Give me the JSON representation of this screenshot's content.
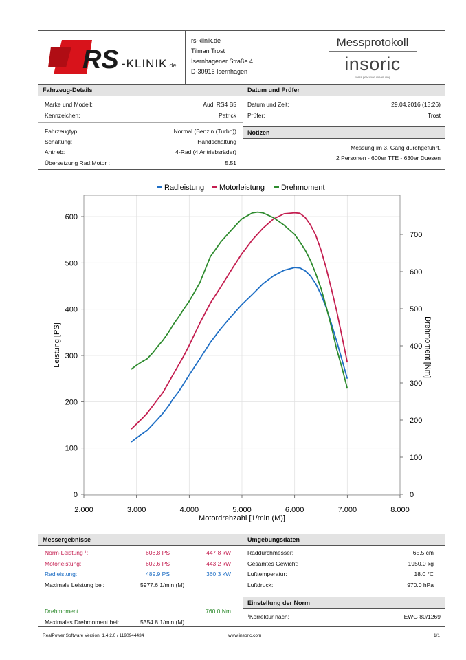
{
  "header": {
    "logo_rs": "RS",
    "logo_klinik": "-KLINIK",
    "logo_de": ".de",
    "address": [
      "rs-klinik.de",
      "Tilman Trost",
      "Isernhagener Straße 4",
      "D-30916 Isernhagen"
    ],
    "protocol_title": "Messprotokoll",
    "brand": "insoric",
    "brand_tagline": "swiss precision measuring"
  },
  "vehicle": {
    "title": "Fahrzeug-Details",
    "rows": [
      {
        "label": "Marke und Modell:",
        "value": "Audi RS4 B5"
      },
      {
        "label": "Kennzeichen:",
        "value": "Patrick"
      },
      {
        "label": "Fahrzeugtyp:",
        "value": "Normal (Benzin (Turbo))"
      },
      {
        "label": "Schaltung:",
        "value": "Handschaltung"
      },
      {
        "label": "Antrieb:",
        "value": "4-Rad (4 Antriebsräder)"
      },
      {
        "label": "Übersetzung Rad:Motor :",
        "value": "5.51"
      }
    ]
  },
  "date_tester": {
    "title": "Datum und Prüfer",
    "rows": [
      {
        "label": "Datum und Zeit:",
        "value": "29.04.2016 (13:26)"
      },
      {
        "label": "Prüfer:",
        "value": "Trost"
      }
    ]
  },
  "notes": {
    "title": "Notizen",
    "lines": [
      "Messung im 3. Gang durchgeführt.",
      "2 Personen - 600er TTE - 630er Duesen"
    ]
  },
  "chart_data": {
    "type": "line",
    "legend": [
      "Radleistung",
      "Motorleistung",
      "Drehmoment"
    ],
    "legend_position": "top-center",
    "xlabel": "Motordrehzahl [1/min (M)]",
    "ylabel": "Leistung [PS]",
    "y2label": "Drehmoment [Nm]",
    "xlim": [
      2000,
      8000
    ],
    "ylim": [
      0,
      650
    ],
    "y2lim": [
      0,
      790
    ],
    "xticks": [
      "2.000",
      "3.000",
      "4.000",
      "5.000",
      "6.000",
      "7.000",
      "8.000"
    ],
    "yticks": [
      "0",
      "100",
      "200",
      "300",
      "400",
      "500",
      "600"
    ],
    "y2ticks": [
      "0",
      "100",
      "200",
      "300",
      "400",
      "500",
      "600",
      "700"
    ],
    "grid": true,
    "series": [
      {
        "name": "Radleistung",
        "color": "#1f6fc5",
        "axis": "left",
        "x": [
          2900,
          3000,
          3100,
          3200,
          3300,
          3400,
          3500,
          3600,
          3700,
          3800,
          3900,
          4000,
          4200,
          4400,
          4600,
          4800,
          5000,
          5200,
          5400,
          5600,
          5800,
          6000,
          6100,
          6200,
          6300,
          6400,
          6500,
          6600,
          6700,
          6800,
          6900,
          7000
        ],
        "y": [
          113,
          122,
          130,
          138,
          150,
          162,
          175,
          190,
          207,
          222,
          240,
          258,
          293,
          328,
          358,
          385,
          410,
          432,
          455,
          472,
          484,
          490,
          489,
          483,
          472,
          455,
          432,
          403,
          368,
          330,
          290,
          250
        ]
      },
      {
        "name": "Motorleistung",
        "color": "#c41e50",
        "axis": "left",
        "x": [
          2900,
          3000,
          3100,
          3200,
          3300,
          3400,
          3500,
          3600,
          3700,
          3800,
          3900,
          4000,
          4200,
          4400,
          4600,
          4800,
          5000,
          5200,
          5400,
          5600,
          5800,
          6000,
          6100,
          6200,
          6300,
          6400,
          6500,
          6600,
          6700,
          6800,
          6900,
          7000
        ],
        "y": [
          141,
          152,
          163,
          175,
          190,
          205,
          220,
          240,
          260,
          280,
          300,
          322,
          370,
          413,
          448,
          485,
          520,
          550,
          575,
          595,
          606,
          608,
          607,
          598,
          582,
          560,
          528,
          488,
          443,
          395,
          340,
          285
        ]
      },
      {
        "name": "Drehmoment",
        "color": "#2e8b2e",
        "axis": "right",
        "x": [
          2900,
          3000,
          3100,
          3200,
          3300,
          3400,
          3500,
          3600,
          3700,
          3800,
          3900,
          4000,
          4200,
          4400,
          4600,
          4800,
          5000,
          5200,
          5300,
          5400,
          5600,
          5800,
          6000,
          6100,
          6200,
          6300,
          6400,
          6500,
          6600,
          6700,
          6800,
          6900,
          7000
        ],
        "y": [
          337,
          348,
          357,
          365,
          380,
          398,
          415,
          435,
          458,
          478,
          500,
          520,
          570,
          640,
          680,
          712,
          742,
          758,
          760,
          758,
          745,
          725,
          700,
          680,
          658,
          630,
          595,
          555,
          505,
          450,
          390,
          340,
          285
        ]
      }
    ]
  },
  "results": {
    "title": "Messergebnisse",
    "norm": {
      "label": "Norm-Leistung ¹:",
      "ps": "608.8 PS",
      "kw": "447.8 kW"
    },
    "motor": {
      "label": "Motorleistung:",
      "ps": "602.6 PS",
      "kw": "443.2 kW"
    },
    "wheel": {
      "label": "Radleistung:",
      "ps": "489.9 PS",
      "kw": "360.3 kW"
    },
    "max_power": {
      "label": "Maximale Leistung bei:",
      "value": "5977.6 1/min (M)"
    },
    "torque": {
      "label": "Drehmoment",
      "value": "760.0 Nm"
    },
    "max_torque": {
      "label": "Maximales Drehmoment bei:",
      "value": "5354.8 1/min (M)"
    }
  },
  "environment": {
    "title": "Umgebungsdaten",
    "rows": [
      {
        "label": "Raddurchmesser:",
        "value": "65.5 cm"
      },
      {
        "label": "Gesamtes Gewicht:",
        "value": "1950.0 kg"
      },
      {
        "label": "Lufttemperatur:",
        "value": "18.0 °C"
      },
      {
        "label": "Luftdruck:",
        "value": "970.0 hPa"
      }
    ]
  },
  "norm_setting": {
    "title": "Einstellung der Norm",
    "label": "¹Korrektur nach:",
    "value": "EWG 80/1269"
  },
  "footer": {
    "software": "RealPower Software Version: 1.4.2.0 / 1190944434",
    "website": "www.insoric.com",
    "page": "1/1"
  },
  "colors": {
    "wheel": "#1f6fc5",
    "motor": "#c41e50",
    "torque": "#2e8b2e",
    "logo_red": "#d8131b"
  }
}
